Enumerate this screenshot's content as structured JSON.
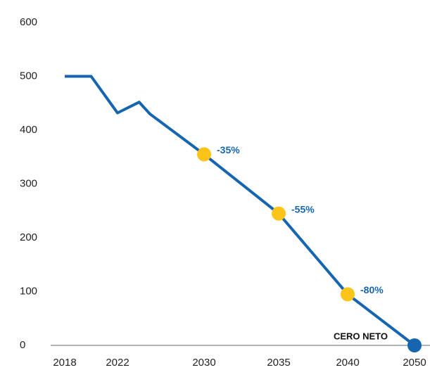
{
  "chart_data": {
    "type": "line",
    "x": [
      2018,
      2020,
      2022,
      2024,
      2025,
      2030,
      2035,
      2040,
      2050
    ],
    "series": [
      {
        "color": "#1565b0",
        "values": [
          500,
          500,
          432,
          452,
          430,
          355,
          245,
          95,
          0
        ]
      }
    ],
    "markers": [
      {
        "index": 5,
        "color": "#fcc419"
      },
      {
        "index": 6,
        "color": "#fcc419"
      },
      {
        "index": 7,
        "color": "#fcc419"
      },
      {
        "index": 8,
        "color": "#1565b0"
      }
    ],
    "annotations": [
      {
        "x": 2030,
        "text": "-35%"
      },
      {
        "x": 2035,
        "text": "-55%"
      },
      {
        "x": 2040,
        "text": "-80%"
      },
      {
        "x": 2050,
        "text": "CERO NETO"
      }
    ],
    "ylim": [
      0,
      600
    ],
    "yticks": [
      0,
      100,
      200,
      300,
      400,
      500,
      600
    ],
    "xticks": [
      2018,
      2022,
      2030,
      2035,
      2040,
      2050
    ],
    "grid": false
  }
}
